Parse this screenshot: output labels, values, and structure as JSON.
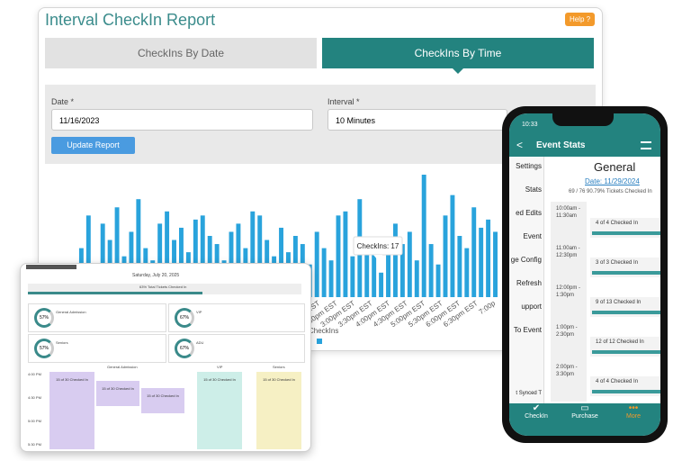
{
  "report": {
    "title": "Interval CheckIn Report",
    "help": "Help ?",
    "tabs": [
      "CheckIns By Date",
      "CheckIns By Time"
    ],
    "date_label": "Date *",
    "date_value": "11/16/2023",
    "interval_label": "Interval *",
    "interval_value": "10 Minutes",
    "button": "Update Report",
    "chart": {
      "type": "bar",
      "color": "#29a3dc",
      "values": [
        8,
        12,
        20,
        6,
        18,
        14,
        22,
        10,
        16,
        24,
        12,
        9,
        18,
        21,
        14,
        17,
        11,
        19,
        20,
        15,
        13,
        9,
        16,
        18,
        12,
        21,
        20,
        14,
        10,
        17,
        11,
        15,
        13,
        8,
        16,
        12,
        9,
        20,
        21,
        10,
        24,
        14,
        12,
        6,
        11,
        18,
        13,
        16,
        9,
        30,
        13,
        8,
        20,
        25,
        15,
        12,
        22,
        17,
        19,
        16
      ],
      "x_labels": [
        ":00pm EST",
        "2:30pm EST",
        "3:00pm EST",
        "3:30pm EST",
        "4:00pm EST",
        "4:30pm EST",
        "5:00pm EST",
        "5:30pm EST",
        "6:00pm EST",
        "6:30pm EST",
        "7:00p"
      ],
      "tooltip": "CheckIns: 17",
      "legend": "CheckIns"
    }
  },
  "tablet": {
    "date": "Saturday, July 20, 2025",
    "total": "63% Total Tickets Checked In",
    "cards": [
      {
        "name": "General Admission",
        "percent": "57%"
      },
      {
        "name": "VIP",
        "percent": "67%"
      },
      {
        "name": "Seniors",
        "percent": "57%"
      },
      {
        "name": "ADU",
        "percent": "67%"
      }
    ],
    "columns": [
      "General Admission",
      "VIP",
      "Seniors"
    ],
    "times": [
      "4:00 PM",
      "4:30 PM",
      "5:00 PM",
      "5:30 PM"
    ],
    "block": "15 of 30 Checked In"
  },
  "phone": {
    "time": "10:33",
    "header": "Event Stats",
    "menu": [
      "Settings",
      "Stats",
      "ed Edits",
      "Event",
      "ge Config",
      "Refresh",
      "upport",
      "To Event",
      "t Synced T"
    ],
    "event": "General",
    "date": "Date: 11/29/2024",
    "summary": "69 / 76 90.79% Tickets Checked In",
    "rows": [
      {
        "start": "10:00am -",
        "end": "11:30am",
        "status": "4 of 4 Checked In"
      },
      {
        "start": "11:00am -",
        "end": "12:30pm",
        "status": "3 of 3 Checked In"
      },
      {
        "start": "12:00pm -",
        "end": "1:30pm",
        "status": "9 of 13 Checked In"
      },
      {
        "start": "1:00pm -",
        "end": "2:30pm",
        "status": "12 of 12 Checked In"
      },
      {
        "start": "2:00pm -",
        "end": "3:30pm",
        "status": "4 of 4 Checked In"
      }
    ],
    "nav": [
      "CheckIn",
      "Purchase",
      "More"
    ]
  }
}
